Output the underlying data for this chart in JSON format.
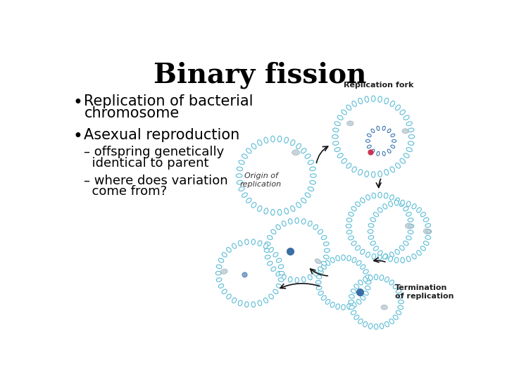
{
  "title": "Binary fission",
  "title_fontsize": 28,
  "title_fontweight": "bold",
  "bg_color": "#ffffff",
  "bullet1_line1": "Replication of bacterial",
  "bullet1_line2": "chromosome",
  "bullet2": "Asexual reproduction",
  "sub1_line1": "– offspring genetically",
  "sub1_line2": "  identical to parent",
  "sub2_line1": "– where does variation",
  "sub2_line2": "  come from?",
  "text_fontsize": 15,
  "sub_fontsize": 13,
  "circle_color": "#5bbcd6",
  "label_origin": "Origin of\nreplication",
  "label_fork": "Replication fork",
  "label_termination": "Termination\nof replication",
  "label_fontsize": 8,
  "label_fontweight": "bold",
  "dot_color_gray": "#8aacbb",
  "dot_color_blue": "#3a6ea5",
  "dot_color_pink": "#cc3355",
  "arrow_color": "#111111"
}
